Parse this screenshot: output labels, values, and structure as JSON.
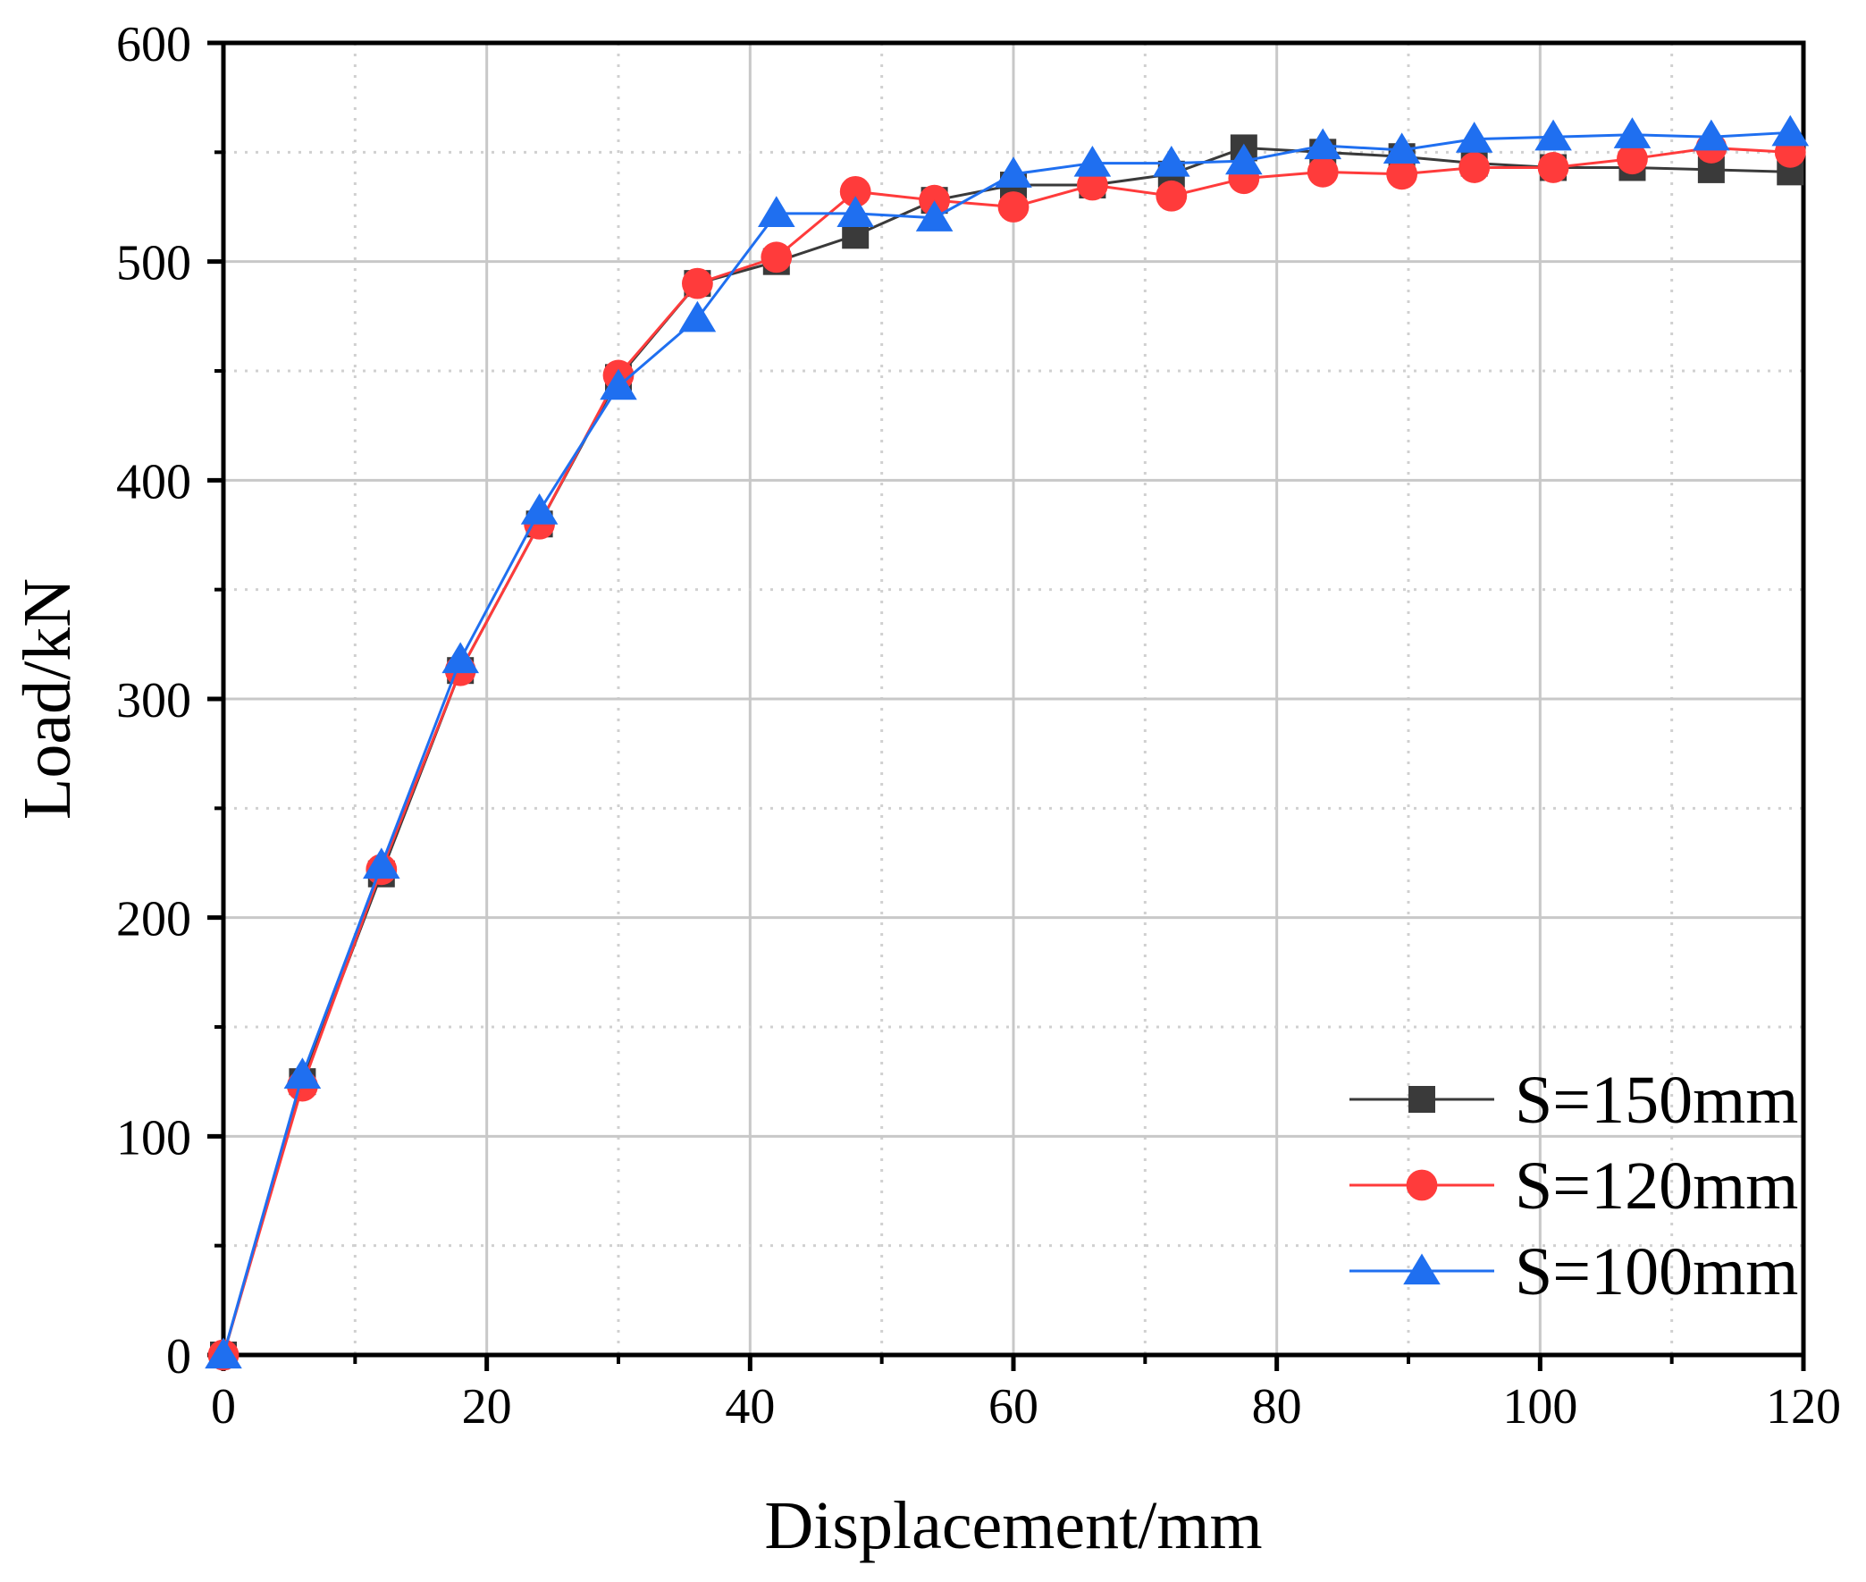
{
  "chart_data": {
    "type": "line",
    "title": "",
    "xlabel": "Displacement/mm",
    "ylabel": "Load/kN",
    "xlim": [
      0,
      120
    ],
    "ylim": [
      0,
      600
    ],
    "xticks": [
      0,
      20,
      40,
      60,
      80,
      100,
      120
    ],
    "yticks": [
      0,
      100,
      200,
      300,
      400,
      500,
      600
    ],
    "xtick_labels": [
      "0",
      "20",
      "40",
      "60",
      "80",
      "100",
      "120"
    ],
    "ytick_labels": [
      "0",
      "100",
      "200",
      "300",
      "400",
      "500",
      "600"
    ],
    "grid": true,
    "legend_position": "bottom-right",
    "series": [
      {
        "name": "S=150mm",
        "color": "#3a3a3a",
        "marker": "square",
        "x": [
          0,
          6,
          12,
          18,
          24,
          30,
          36,
          42,
          48,
          54,
          60,
          66,
          72,
          77.5,
          83.5,
          89.5,
          95,
          101,
          107,
          113,
          119
        ],
        "y": [
          0,
          125,
          220,
          313,
          380,
          447,
          490,
          500,
          512,
          528,
          535,
          535,
          540,
          552,
          550,
          548,
          545,
          543,
          543,
          542,
          541
        ]
      },
      {
        "name": "S=120mm",
        "color": "#ff3b3b",
        "marker": "circle",
        "x": [
          0,
          6,
          12,
          18,
          24,
          30,
          36,
          42,
          48,
          54,
          60,
          66,
          72,
          77.5,
          83.5,
          89.5,
          95,
          101,
          107,
          113,
          119
        ],
        "y": [
          0,
          123,
          222,
          313,
          380,
          448,
          490,
          502,
          532,
          528,
          525,
          535,
          530,
          538,
          541,
          540,
          543,
          543,
          547,
          552,
          550
        ]
      },
      {
        "name": "S=100mm",
        "color": "#1f6ff0",
        "marker": "triangle",
        "x": [
          0,
          6,
          12,
          18,
          24,
          30,
          36,
          42,
          48,
          54,
          60,
          66,
          72,
          77.5,
          83.5,
          89.5,
          95,
          101,
          107,
          113,
          119
        ],
        "y": [
          0,
          128,
          224,
          318,
          386,
          443,
          474,
          522,
          522,
          520,
          540,
          545,
          545,
          546,
          553,
          551,
          556,
          557,
          558,
          557,
          559
        ]
      }
    ]
  }
}
